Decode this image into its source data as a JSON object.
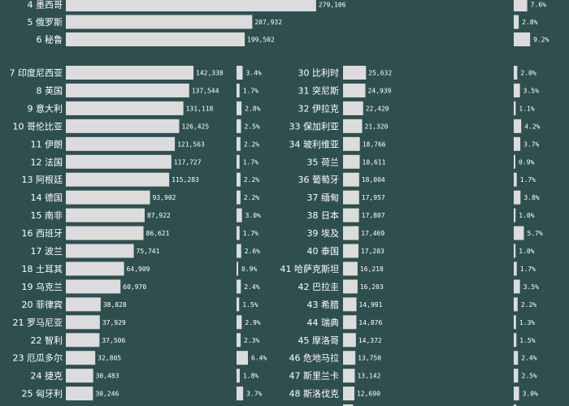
{
  "chart_data": {
    "type": "bar",
    "colors": {
      "background": "#2f4f4f",
      "bar": "#dcdcdc",
      "text": "#ffffff"
    },
    "top_rows": [
      {
        "rank": 4,
        "country": "墨西哥",
        "value": 279106,
        "share": "7.6%"
      },
      {
        "rank": 5,
        "country": "俄罗斯",
        "value": 207932,
        "share": "2.8%"
      },
      {
        "rank": 6,
        "country": "秘鲁",
        "value": 199502,
        "share": "9.2%"
      }
    ],
    "left_rows": [
      {
        "rank": 7,
        "country": "印度尼西亚",
        "value": 142338,
        "share": "3.4%"
      },
      {
        "rank": 8,
        "country": "英国",
        "value": 137544,
        "share": "1.7%"
      },
      {
        "rank": 9,
        "country": "意大利",
        "value": 131118,
        "share": "2.8%"
      },
      {
        "rank": 10,
        "country": "哥伦比亚",
        "value": 126425,
        "share": "2.5%"
      },
      {
        "rank": 11,
        "country": "伊朗",
        "value": 121563,
        "share": "2.2%"
      },
      {
        "rank": 12,
        "country": "法国",
        "value": 117727,
        "share": "1.7%"
      },
      {
        "rank": 13,
        "country": "阿根廷",
        "value": 115283,
        "share": "2.2%"
      },
      {
        "rank": 14,
        "country": "德国",
        "value": 93902,
        "share": "2.2%"
      },
      {
        "rank": 15,
        "country": "南非",
        "value": 87922,
        "share": "3.0%"
      },
      {
        "rank": 16,
        "country": "西班牙",
        "value": 86621,
        "share": "1.7%"
      },
      {
        "rank": 17,
        "country": "波兰",
        "value": 75741,
        "share": "2.6%"
      },
      {
        "rank": 18,
        "country": "土耳其",
        "value": 64909,
        "share": "0.9%"
      },
      {
        "rank": 19,
        "country": "乌克兰",
        "value": 60970,
        "share": "2.4%"
      },
      {
        "rank": 20,
        "country": "菲律宾",
        "value": 38828,
        "share": "1.5%"
      },
      {
        "rank": 21,
        "country": "罗马尼亚",
        "value": 37929,
        "share": "2.9%"
      },
      {
        "rank": 22,
        "country": "智利",
        "value": 37506,
        "share": "2.3%"
      },
      {
        "rank": 23,
        "country": "厄瓜多尔",
        "value": 32805,
        "share": "6.4%"
      },
      {
        "rank": 24,
        "country": "捷克",
        "value": 30483,
        "share": "1.8%"
      },
      {
        "rank": 25,
        "country": "匈牙利",
        "value": 30246,
        "share": "3.7%"
      }
    ],
    "right_rows": [
      {
        "rank": 30,
        "country": "比利时",
        "value": 25632,
        "share": "2.0%"
      },
      {
        "rank": 31,
        "country": "突尼斯",
        "value": 24939,
        "share": "3.5%"
      },
      {
        "rank": 32,
        "country": "伊拉克",
        "value": 22420,
        "share": "1.1%"
      },
      {
        "rank": 33,
        "country": "保加利亚",
        "value": 21320,
        "share": "4.2%"
      },
      {
        "rank": 34,
        "country": "玻利维亚",
        "value": 18766,
        "share": "3.7%"
      },
      {
        "rank": 35,
        "country": "荷兰",
        "value": 18611,
        "share": "0.9%"
      },
      {
        "rank": 36,
        "country": "葡萄牙",
        "value": 18004,
        "share": "1.7%"
      },
      {
        "rank": 37,
        "country": "缅甸",
        "value": 17957,
        "share": "3.8%"
      },
      {
        "rank": 38,
        "country": "日本",
        "value": 17807,
        "share": "1.0%"
      },
      {
        "rank": 39,
        "country": "埃及",
        "value": 17469,
        "share": "5.7%"
      },
      {
        "rank": 40,
        "country": "泰国",
        "value": 17203,
        "share": "1.0%"
      },
      {
        "rank": 41,
        "country": "哈萨克斯坦",
        "value": 16218,
        "share": "1.7%"
      },
      {
        "rank": 42,
        "country": "巴拉圭",
        "value": 16203,
        "share": "3.5%"
      },
      {
        "rank": 43,
        "country": "希腊",
        "value": 14991,
        "share": "2.2%"
      },
      {
        "rank": 44,
        "country": "瑞典",
        "value": 14876,
        "share": "1.3%"
      },
      {
        "rank": 45,
        "country": "摩洛哥",
        "value": 14372,
        "share": "1.5%"
      },
      {
        "rank": 46,
        "country": "危地马拉",
        "value": 13750,
        "share": "2.4%"
      },
      {
        "rank": 47,
        "country": "斯里兰卡",
        "value": 13142,
        "share": "2.5%"
      },
      {
        "rank": 48,
        "country": "斯洛伐克",
        "value": 12690,
        "share": "3.0%"
      },
      {
        "rank": 49,
        "country": "尼泊尔",
        "value": 11180,
        "share": "1.4%"
      }
    ]
  }
}
